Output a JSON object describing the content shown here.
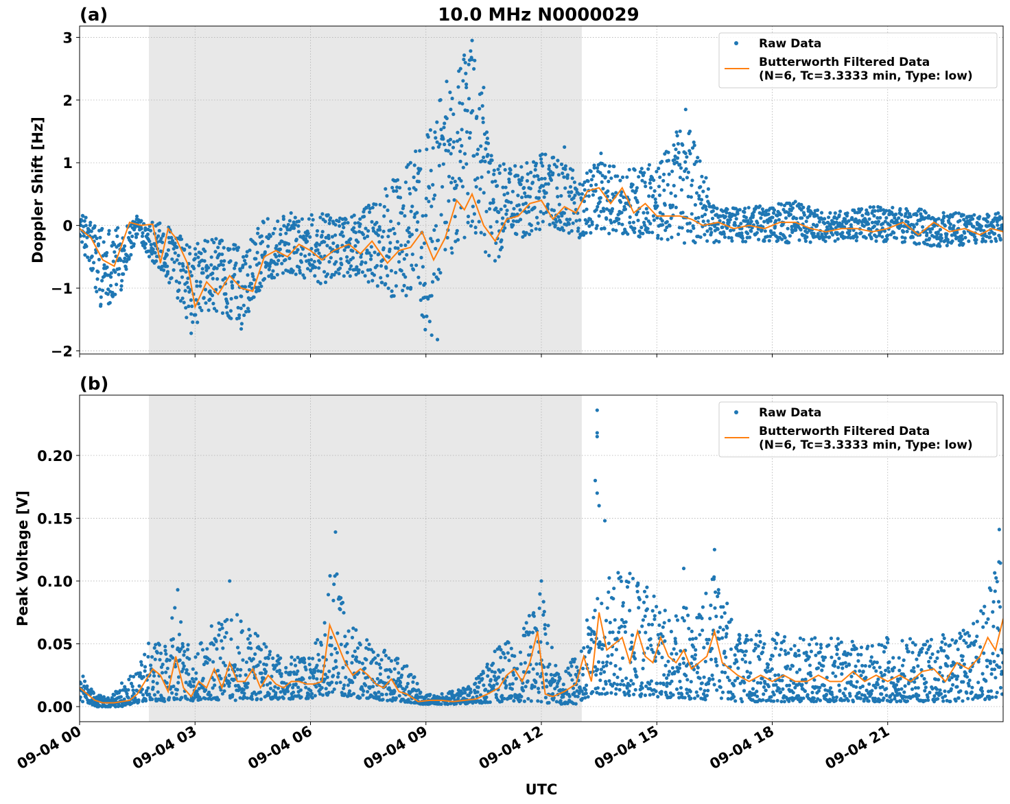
{
  "figure": {
    "title": "10.0 MHz N0000029",
    "xlabel": "UTC",
    "colors": {
      "raw": "#1f77b4",
      "filtered": "#ff7f0e",
      "shade": "#e8e8e8",
      "grid": "#b0b0b0"
    }
  },
  "chart_data": [
    {
      "type": "scatter",
      "panel_label": "(a)",
      "ylabel": "Doppler Shift [Hz]",
      "xlim": [
        "09-04 00:00",
        "09-05 00:00"
      ],
      "ylim": [
        -2.05,
        3.18
      ],
      "yticks": [
        3,
        2,
        1,
        0,
        -1,
        -2
      ],
      "ytick_labels": [
        "3",
        "2",
        "1",
        "0",
        "−1",
        "−2"
      ],
      "shaded_interval": [
        "09-04 01:48",
        "09-04 13:03"
      ],
      "grid": true,
      "legend": {
        "placement": "upper right",
        "entries": [
          "Raw Data",
          "Butterworth Filtered Data\n(N=6, Tc=3.3333 min, Type: low)"
        ]
      },
      "series": [
        {
          "name": "Raw Data",
          "style": "points",
          "envelope": {
            "hours": [
              0,
              0.5,
              1,
              1.5,
              1.8,
              2.3,
              2.9,
              3.5,
              4.2,
              4.8,
              5.5,
              6.2,
              7.0,
              7.8,
              8.5,
              9.0,
              9.6,
              10.2,
              10.8,
              11.5,
              12.2,
              13.0,
              13.5,
              14.2,
              15.0,
              15.8,
              16.5,
              17.5,
              18.5,
              19.5,
              20.5,
              21.5,
              22.5,
              24
            ],
            "low": [
              -0.15,
              -1.3,
              -1.2,
              -0.15,
              -0.5,
              -0.9,
              -1.65,
              -1.35,
              -1.6,
              -0.9,
              -0.75,
              -0.95,
              -0.8,
              -1.0,
              -1.3,
              -1.8,
              -0.5,
              -0.2,
              -0.6,
              -0.2,
              0.0,
              -0.2,
              -0.1,
              -0.2,
              -0.2,
              -0.3,
              -0.3,
              -0.25,
              -0.3,
              -0.25,
              -0.25,
              -0.3,
              -0.35,
              -0.25
            ],
            "high": [
              0.2,
              0.05,
              0.0,
              0.15,
              0.1,
              0.0,
              -0.3,
              -0.2,
              -0.3,
              0.1,
              0.2,
              0.2,
              0.1,
              0.5,
              1.0,
              1.5,
              2.5,
              2.9,
              1.0,
              1.0,
              1.2,
              0.8,
              1.1,
              0.9,
              1.0,
              1.8,
              0.3,
              0.3,
              0.4,
              0.2,
              0.3,
              0.3,
              0.2,
              0.2
            ]
          },
          "outliers": [
            [
              9.9,
              2.5
            ],
            [
              10.2,
              2.95
            ],
            [
              10.05,
              2.2
            ],
            [
              9.3,
              -1.82
            ],
            [
              10.5,
              2.2
            ],
            [
              15.75,
              1.85
            ],
            [
              15.1,
              1.0
            ],
            [
              13.55,
              1.15
            ],
            [
              12.6,
              1.25
            ],
            [
              8.6,
              1.0
            ],
            [
              4.2,
              -1.65
            ],
            [
              2.9,
              -1.72
            ],
            [
              12.0,
              1.0
            ],
            [
              9.15,
              -1.75
            ]
          ]
        },
        {
          "name": "Butterworth Filtered Data (N=6, Tc=3.3333 min, Type: low)",
          "style": "line",
          "x_hours": [
            0,
            0.3,
            0.6,
            0.9,
            1.1,
            1.3,
            1.6,
            1.9,
            2.1,
            2.3,
            2.5,
            2.8,
            3.0,
            3.3,
            3.6,
            3.9,
            4.2,
            4.5,
            4.8,
            5.1,
            5.4,
            5.7,
            6.0,
            6.3,
            6.6,
            7.0,
            7.3,
            7.6,
            8.0,
            8.3,
            8.6,
            8.9,
            9.2,
            9.5,
            9.8,
            10.0,
            10.2,
            10.5,
            10.8,
            11.1,
            11.4,
            11.7,
            12.0,
            12.3,
            12.6,
            12.9,
            13.2,
            13.5,
            13.8,
            14.1,
            14.4,
            14.7,
            15.0,
            15.3,
            15.6,
            15.9,
            16.2,
            16.6,
            17.0,
            17.4,
            17.8,
            18.2,
            18.6,
            19.0,
            19.4,
            19.8,
            20.2,
            20.6,
            21.0,
            21.4,
            21.8,
            22.2,
            22.6,
            23.0,
            23.4,
            23.7,
            24.0
          ],
          "y": [
            -0.05,
            -0.2,
            -0.55,
            -0.65,
            -0.3,
            0.05,
            0.0,
            0.02,
            -0.6,
            -0.05,
            -0.2,
            -0.6,
            -1.3,
            -0.9,
            -1.1,
            -0.8,
            -1.0,
            -1.05,
            -0.5,
            -0.4,
            -0.5,
            -0.3,
            -0.4,
            -0.55,
            -0.4,
            -0.3,
            -0.45,
            -0.25,
            -0.6,
            -0.4,
            -0.35,
            -0.1,
            -0.55,
            -0.2,
            0.4,
            0.25,
            0.5,
            0.0,
            -0.25,
            0.1,
            0.15,
            0.35,
            0.4,
            0.1,
            0.3,
            0.2,
            0.55,
            0.6,
            0.35,
            0.6,
            0.2,
            0.35,
            0.15,
            0.15,
            0.15,
            0.1,
            0.0,
            0.05,
            -0.05,
            0.0,
            -0.05,
            0.05,
            0.05,
            -0.05,
            -0.1,
            -0.05,
            -0.05,
            -0.1,
            -0.05,
            0.05,
            -0.15,
            0.05,
            -0.1,
            -0.05,
            -0.15,
            -0.05,
            -0.1
          ]
        }
      ]
    },
    {
      "type": "scatter",
      "panel_label": "(b)",
      "ylabel": "Peak Voltage [V]",
      "xlim": [
        "09-04 00:00",
        "09-05 00:00"
      ],
      "ylim": [
        -0.012,
        0.248
      ],
      "yticks": [
        0.0,
        0.05,
        0.1,
        0.15,
        0.2
      ],
      "ytick_labels": [
        "0.00",
        "0.05",
        "0.10",
        "0.15",
        "0.20"
      ],
      "xtick_labels": [
        "09-04 00",
        "09-04 03",
        "09-04 06",
        "09-04 09",
        "09-04 12",
        "09-04 15",
        "09-04 18",
        "09-04 21"
      ],
      "shaded_interval": [
        "09-04 01:48",
        "09-04 13:03"
      ],
      "grid": true,
      "legend": {
        "placement": "upper right",
        "entries": [
          "Raw Data",
          "Butterworth Filtered Data\n(N=6, Tc=3.3333 min, Type: low)"
        ]
      },
      "series": [
        {
          "name": "Raw Data",
          "style": "points",
          "envelope": {
            "hours": [
              0,
              0.4,
              0.8,
              1.1,
              1.5,
              1.8,
              2.2,
              2.5,
              2.9,
              3.3,
              3.8,
              4.3,
              4.8,
              5.3,
              5.8,
              6.3,
              6.6,
              7.0,
              7.4,
              7.9,
              8.4,
              8.9,
              9.4,
              10.0,
              10.5,
              11.0,
              11.5,
              12.0,
              12.5,
              13.0,
              13.3,
              13.6,
              14.0,
              14.5,
              15.0,
              15.5,
              16.0,
              16.6,
              17.2,
              18.0,
              19.0,
              20.0,
              21.0,
              22.0,
              22.8,
              23.3,
              23.7,
              24.0
            ],
            "low": [
              0.005,
              0.0,
              0.0,
              0.0,
              0.003,
              0.005,
              0.004,
              0.006,
              0.004,
              0.006,
              0.005,
              0.005,
              0.006,
              0.006,
              0.006,
              0.008,
              0.01,
              0.008,
              0.006,
              0.005,
              0.004,
              0.002,
              0.002,
              0.002,
              0.003,
              0.004,
              0.004,
              0.003,
              0.002,
              0.002,
              0.01,
              0.01,
              0.01,
              0.008,
              0.008,
              0.006,
              0.006,
              0.005,
              0.004,
              0.004,
              0.004,
              0.004,
              0.004,
              0.004,
              0.004,
              0.005,
              0.006,
              0.007
            ],
            "high": [
              0.03,
              0.01,
              0.008,
              0.02,
              0.03,
              0.06,
              0.045,
              0.09,
              0.04,
              0.06,
              0.08,
              0.07,
              0.05,
              0.04,
              0.04,
              0.06,
              0.13,
              0.07,
              0.06,
              0.045,
              0.045,
              0.01,
              0.01,
              0.015,
              0.03,
              0.055,
              0.06,
              0.095,
              0.02,
              0.05,
              0.09,
              0.1,
              0.11,
              0.1,
              0.09,
              0.08,
              0.08,
              0.11,
              0.06,
              0.06,
              0.055,
              0.055,
              0.055,
              0.055,
              0.06,
              0.07,
              0.1,
              0.13
            ]
          },
          "outliers": [
            [
              13.45,
              0.236
            ],
            [
              13.45,
              0.218
            ],
            [
              13.45,
              0.215
            ],
            [
              13.4,
              0.18
            ],
            [
              13.45,
              0.17
            ],
            [
              13.5,
              0.16
            ],
            [
              13.65,
              0.148
            ],
            [
              6.65,
              0.139
            ],
            [
              16.5,
              0.125
            ],
            [
              12.0,
              0.1
            ],
            [
              3.9,
              0.1
            ],
            [
              2.55,
              0.093
            ],
            [
              23.9,
              0.141
            ],
            [
              15.7,
              0.11
            ],
            [
              14.3,
              0.106
            ]
          ]
        },
        {
          "name": "Butterworth Filtered Data (N=6, Tc=3.3333 min, Type: low)",
          "style": "line",
          "x_hours": [
            0,
            0.2,
            0.4,
            0.6,
            0.9,
            1.1,
            1.3,
            1.5,
            1.7,
            1.9,
            2.1,
            2.3,
            2.5,
            2.7,
            2.9,
            3.1,
            3.3,
            3.5,
            3.7,
            3.9,
            4.1,
            4.3,
            4.5,
            4.7,
            4.9,
            5.1,
            5.3,
            5.5,
            5.7,
            5.9,
            6.1,
            6.3,
            6.5,
            6.7,
            6.9,
            7.1,
            7.3,
            7.5,
            7.7,
            7.9,
            8.1,
            8.3,
            8.5,
            8.8,
            9.1,
            9.4,
            9.7,
            10.0,
            10.3,
            10.6,
            10.9,
            11.1,
            11.3,
            11.5,
            11.7,
            11.9,
            12.1,
            12.3,
            12.6,
            12.9,
            13.1,
            13.3,
            13.5,
            13.7,
            13.9,
            14.1,
            14.3,
            14.5,
            14.7,
            14.9,
            15.1,
            15.3,
            15.5,
            15.7,
            15.9,
            16.1,
            16.3,
            16.5,
            16.7,
            16.9,
            17.1,
            17.4,
            17.7,
            18.0,
            18.3,
            18.6,
            18.9,
            19.2,
            19.5,
            19.8,
            20.1,
            20.4,
            20.7,
            21.0,
            21.3,
            21.6,
            21.9,
            22.2,
            22.5,
            22.8,
            23.1,
            23.4,
            23.6,
            23.8,
            24.0
          ],
          "y": [
            0.015,
            0.01,
            0.005,
            0.003,
            0.003,
            0.004,
            0.005,
            0.01,
            0.02,
            0.03,
            0.025,
            0.012,
            0.04,
            0.015,
            0.008,
            0.02,
            0.015,
            0.03,
            0.015,
            0.035,
            0.02,
            0.02,
            0.03,
            0.015,
            0.025,
            0.018,
            0.015,
            0.02,
            0.02,
            0.018,
            0.018,
            0.02,
            0.065,
            0.05,
            0.035,
            0.025,
            0.03,
            0.025,
            0.018,
            0.015,
            0.022,
            0.012,
            0.01,
            0.004,
            0.005,
            0.005,
            0.004,
            0.005,
            0.006,
            0.01,
            0.015,
            0.025,
            0.03,
            0.02,
            0.035,
            0.06,
            0.01,
            0.008,
            0.012,
            0.018,
            0.04,
            0.02,
            0.075,
            0.045,
            0.05,
            0.055,
            0.035,
            0.06,
            0.04,
            0.035,
            0.055,
            0.04,
            0.035,
            0.045,
            0.03,
            0.035,
            0.04,
            0.06,
            0.035,
            0.03,
            0.025,
            0.02,
            0.025,
            0.02,
            0.025,
            0.02,
            0.02,
            0.025,
            0.02,
            0.02,
            0.028,
            0.02,
            0.025,
            0.02,
            0.025,
            0.02,
            0.028,
            0.03,
            0.02,
            0.035,
            0.03,
            0.04,
            0.055,
            0.045,
            0.07
          ]
        }
      ]
    }
  ]
}
